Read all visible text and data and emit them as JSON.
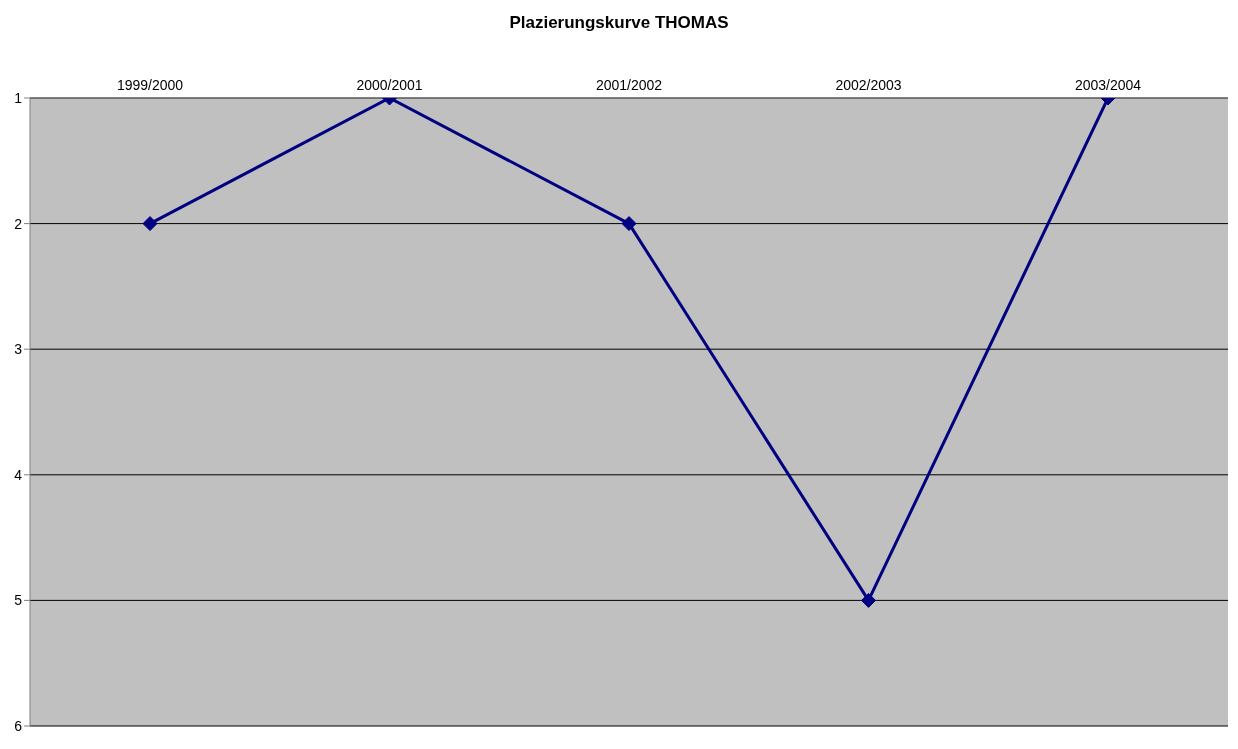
{
  "chart_data": {
    "type": "line",
    "title": "Plazierungskurve THOMAS",
    "categories": [
      "1999/2000",
      "2000/2001",
      "2001/2002",
      "2002/2003",
      "2003/2004"
    ],
    "series": [
      {
        "color": "#000080",
        "values": [
          2,
          1,
          2,
          5,
          1
        ]
      }
    ],
    "ylim": [
      6,
      1
    ],
    "yticks": [
      1,
      2,
      3,
      4,
      5,
      6
    ],
    "grid": "y",
    "marker": "diamond",
    "legend": false
  }
}
